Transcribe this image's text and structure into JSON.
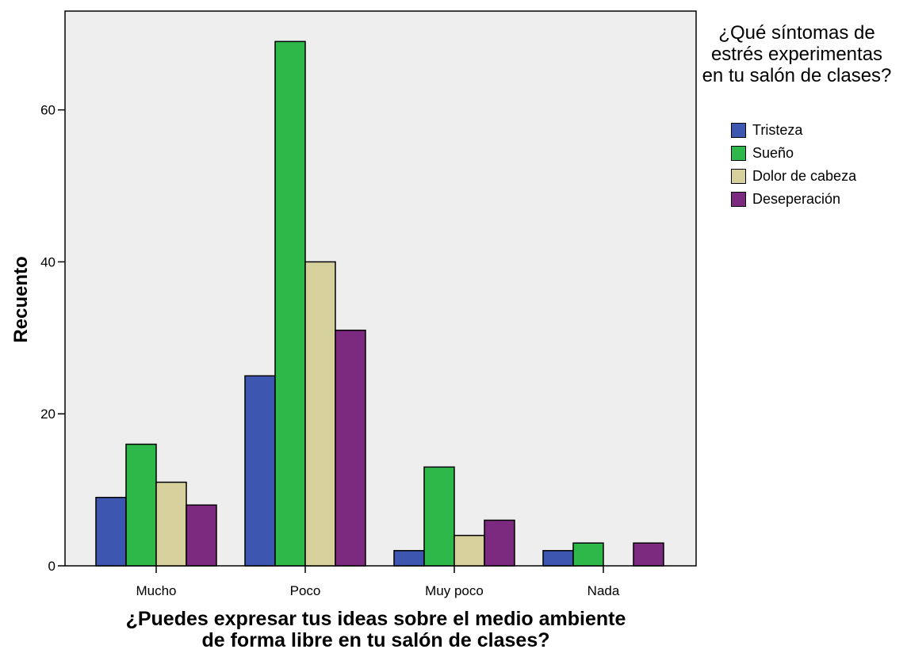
{
  "chart_data": {
    "type": "bar",
    "title": "",
    "xlabel_lines": [
      "¿Puedes expresar tus ideas sobre el medio ambiente",
      "de forma libre en tu salón de clases?"
    ],
    "ylabel": "Recuento",
    "categories": [
      "Mucho",
      "Poco",
      "Muy poco",
      "Nada"
    ],
    "ylim": [
      0,
      73
    ],
    "yticks": [
      0,
      20,
      40,
      60
    ],
    "grid": false,
    "legend": {
      "title_lines": [
        "¿Qué síntomas de",
        "estrés experimentas",
        "en tu salón de clases?"
      ],
      "position": "right"
    },
    "series": [
      {
        "name": "Tristeza",
        "color": "#3d57b0",
        "values": [
          9,
          25,
          2,
          2
        ]
      },
      {
        "name": "Sueño",
        "color": "#2fb84a",
        "values": [
          16,
          69,
          13,
          3
        ]
      },
      {
        "name": "Dolor de cabeza",
        "color": "#d6d09c",
        "values": [
          11,
          40,
          4,
          0
        ]
      },
      {
        "name": "Deseperación",
        "color": "#7c2a7f",
        "values": [
          8,
          31,
          6,
          3
        ]
      }
    ],
    "plot_background": "#efeeee"
  }
}
